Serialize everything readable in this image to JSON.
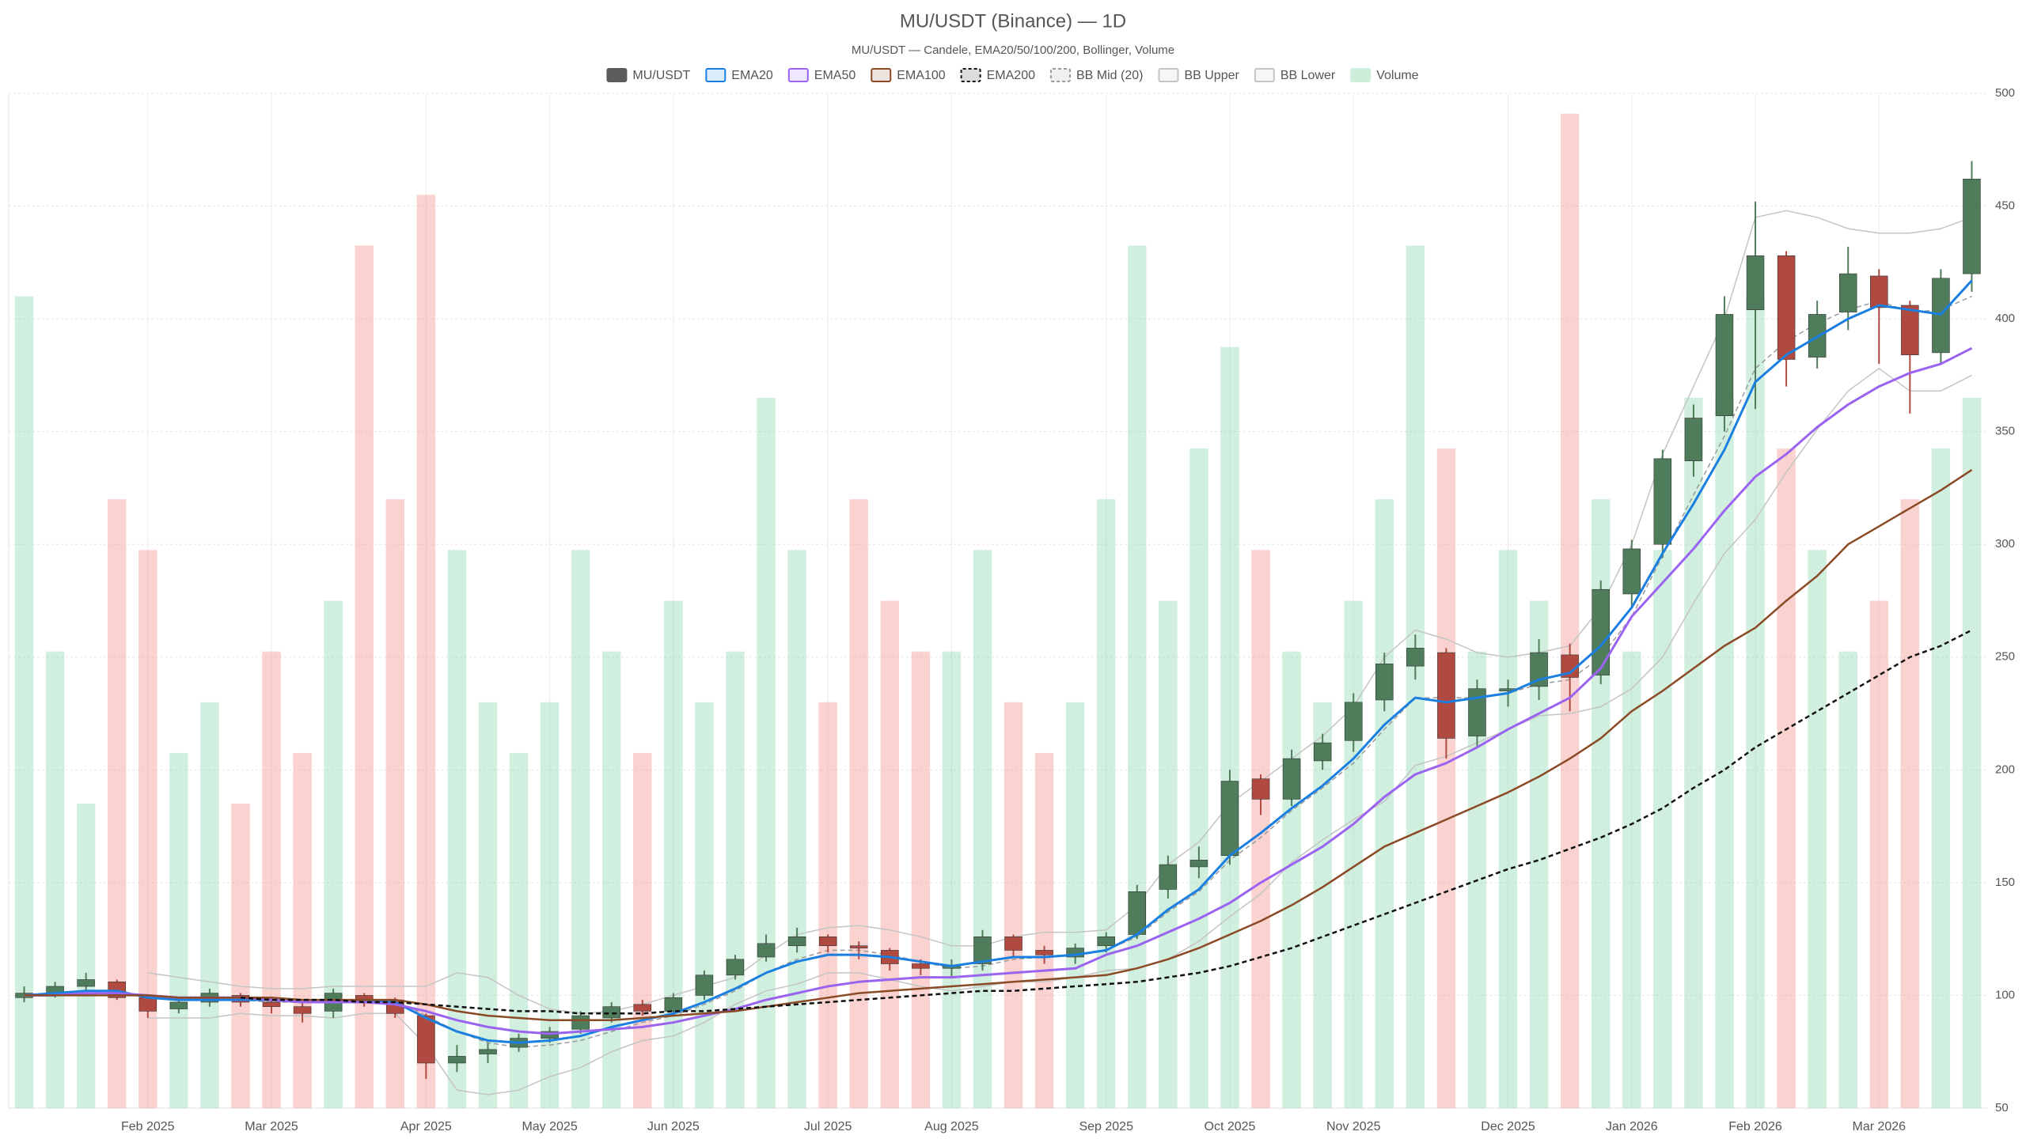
{
  "chart_data": {
    "type": "candlestick",
    "title": "MU/USDT (Binance) — 1D",
    "subtitle": "MU/USDT — Candele, EMA20/50/100/200, Bollinger, Volume",
    "categories": [
      null,
      null,
      null,
      null,
      "Feb 2025",
      null,
      null,
      null,
      "Mar 2025",
      null,
      null,
      null,
      null,
      "Apr 2025",
      null,
      null,
      null,
      "May 2025",
      null,
      null,
      null,
      "Jun 2025",
      null,
      null,
      null,
      null,
      "Jul 2025",
      null,
      null,
      null,
      "Aug 2025",
      null,
      null,
      null,
      null,
      "Sep 2025",
      null,
      null,
      null,
      "Oct 2025",
      null,
      null,
      null,
      "Nov 2025",
      null,
      null,
      null,
      null,
      "Dec 2025",
      null,
      null,
      null,
      "Jan 2026",
      null,
      null,
      null,
      "Feb 2026",
      null,
      null,
      null,
      "Mar 2026",
      null,
      null,
      null
    ],
    "ylim": [
      50,
      500
    ],
    "yticks": [
      50,
      100,
      150,
      200,
      250,
      300,
      350,
      400,
      450,
      500
    ],
    "vlim": [
      0,
      100
    ],
    "grid": true,
    "legend": "top",
    "series": [
      {
        "name": "MU/USDT",
        "type": "candlestick",
        "color": "#5c5c5c",
        "up_color": "#4f7d5c",
        "down_color": "#b04a40",
        "open": [
          99,
          101,
          104,
          106,
          99,
          94,
          97,
          100,
          97,
          95,
          93,
          100,
          98,
          91,
          70,
          74,
          77,
          81,
          85,
          90,
          96,
          93,
          100,
          109,
          117,
          122,
          126,
          122,
          120,
          114,
          112,
          114,
          126,
          120,
          117,
          122,
          127,
          147,
          157,
          162,
          196,
          187,
          204,
          213,
          231,
          246,
          252,
          215,
          235,
          237,
          251,
          242,
          278,
          300,
          337,
          357,
          404,
          428,
          383,
          403,
          419,
          406,
          385,
          420
        ],
        "high": [
          104,
          106,
          110,
          107,
          100,
          98,
          103,
          101,
          99,
          97,
          103,
          101,
          99,
          92,
          78,
          79,
          83,
          86,
          93,
          97,
          98,
          101,
          111,
          118,
          127,
          130,
          127,
          124,
          121,
          116,
          116,
          129,
          127,
          122,
          123,
          128,
          149,
          162,
          166,
          200,
          198,
          209,
          216,
          234,
          252,
          260,
          254,
          240,
          240,
          258,
          256,
          284,
          302,
          342,
          362,
          410,
          452,
          430,
          408,
          432,
          422,
          408,
          422,
          470
        ],
        "low": [
          97,
          99,
          102,
          98,
          90,
          92,
          95,
          95,
          92,
          88,
          90,
          95,
          90,
          63,
          66,
          70,
          75,
          79,
          83,
          88,
          91,
          91,
          98,
          107,
          115,
          119,
          119,
          116,
          111,
          109,
          108,
          111,
          117,
          114,
          114,
          119,
          125,
          143,
          152,
          158,
          180,
          184,
          200,
          208,
          226,
          240,
          205,
          210,
          228,
          231,
          226,
          238,
          272,
          294,
          330,
          350,
          360,
          370,
          378,
          395,
          380,
          358,
          380,
          412
        ],
        "close": [
          101,
          104,
          107,
          99,
          93,
          97,
          101,
          97,
          95,
          92,
          101,
          97,
          92,
          70,
          73,
          76,
          81,
          84,
          91,
          95,
          93,
          99,
          109,
          116,
          123,
          126,
          122,
          121,
          114,
          112,
          113,
          126,
          120,
          118,
          121,
          126,
          146,
          158,
          160,
          195,
          187,
          205,
          212,
          230,
          247,
          254,
          214,
          236,
          236,
          252,
          241,
          280,
          298,
          338,
          356,
          402,
          428,
          382,
          402,
          420,
          405,
          384,
          418,
          462
        ]
      },
      {
        "name": "EMA20",
        "type": "line",
        "color": "#1a7fe0",
        "width": 3,
        "values": [
          100,
          101,
          102,
          102,
          99,
          98,
          98,
          98,
          98,
          97,
          97,
          98,
          97,
          90,
          84,
          80,
          79,
          80,
          82,
          86,
          89,
          92,
          97,
          103,
          110,
          115,
          118,
          118,
          117,
          115,
          113,
          115,
          117,
          117,
          118,
          120,
          127,
          138,
          147,
          162,
          172,
          183,
          193,
          205,
          220,
          232,
          230,
          232,
          234,
          240,
          243,
          255,
          272,
          296,
          318,
          342,
          372,
          384,
          392,
          400,
          406,
          404,
          402,
          417
        ]
      },
      {
        "name": "EMA50",
        "type": "line",
        "color": "#9a63f0",
        "width": 3,
        "values": [
          100,
          100,
          101,
          101,
          100,
          99,
          99,
          99,
          98,
          97,
          97,
          97,
          96,
          93,
          89,
          86,
          84,
          83,
          84,
          85,
          86,
          88,
          91,
          94,
          98,
          101,
          104,
          106,
          107,
          108,
          108,
          109,
          110,
          111,
          112,
          118,
          122,
          128,
          134,
          141,
          150,
          158,
          166,
          176,
          188,
          198,
          203,
          210,
          218,
          225,
          232,
          245,
          268,
          283,
          298,
          315,
          330,
          340,
          352,
          362,
          370,
          376,
          380,
          387
        ]
      },
      {
        "name": "EMA100",
        "type": "line",
        "color": "#8b4a26",
        "width": 2.5,
        "values": [
          100,
          100,
          100,
          100,
          100,
          99,
          99,
          99,
          99,
          98,
          98,
          98,
          98,
          96,
          93,
          91,
          90,
          89,
          89,
          89,
          90,
          91,
          92,
          93,
          95,
          97,
          99,
          101,
          102,
          103,
          104,
          105,
          106,
          107,
          108,
          109,
          112,
          116,
          121,
          127,
          133,
          140,
          148,
          157,
          166,
          172,
          178,
          184,
          190,
          197,
          205,
          214,
          226,
          235,
          245,
          255,
          263,
          275,
          286,
          300,
          308,
          316,
          324,
          333
        ]
      },
      {
        "name": "EMA200",
        "type": "line",
        "color": "#111111",
        "width": 2.5,
        "dash": true,
        "values": [
          null,
          null,
          null,
          null,
          null,
          null,
          null,
          99,
          98,
          98,
          98,
          97,
          97,
          96,
          95,
          94,
          93,
          93,
          92,
          92,
          92,
          93,
          93,
          94,
          95,
          96,
          97,
          98,
          99,
          100,
          101,
          102,
          102,
          103,
          104,
          105,
          106,
          108,
          110,
          113,
          117,
          121,
          126,
          131,
          136,
          141,
          146,
          151,
          156,
          160,
          165,
          170,
          176,
          183,
          192,
          200,
          210,
          218,
          226,
          234,
          242,
          250,
          255,
          262
        ]
      },
      {
        "name": "BB Mid (20)",
        "type": "line",
        "color": "#9a9a9a",
        "width": 1.5,
        "dash": true,
        "values": [
          null,
          null,
          null,
          null,
          100,
          99,
          98,
          98,
          97,
          97,
          97,
          98,
          98,
          91,
          84,
          79,
          77,
          78,
          80,
          84,
          88,
          91,
          96,
          102,
          110,
          116,
          120,
          120,
          118,
          115,
          112,
          113,
          116,
          117,
          118,
          120,
          126,
          137,
          146,
          160,
          170,
          182,
          192,
          203,
          218,
          232,
          232,
          232,
          234,
          238,
          240,
          250,
          268,
          295,
          322,
          348,
          378,
          390,
          398,
          404,
          408,
          403,
          404,
          410
        ]
      },
      {
        "name": "BB Upper",
        "type": "line",
        "color": "#c4c4c4",
        "width": 1.5,
        "values": [
          null,
          null,
          null,
          null,
          110,
          108,
          106,
          104,
          103,
          103,
          104,
          104,
          104,
          104,
          110,
          108,
          100,
          94,
          92,
          93,
          96,
          100,
          104,
          108,
          118,
          127,
          130,
          131,
          129,
          126,
          122,
          122,
          126,
          128,
          128,
          129,
          140,
          158,
          168,
          185,
          195,
          205,
          215,
          228,
          250,
          262,
          258,
          252,
          250,
          252,
          255,
          272,
          300,
          340,
          370,
          400,
          445,
          448,
          445,
          440,
          438,
          438,
          440,
          445
        ]
      },
      {
        "name": "BB Lower",
        "type": "line",
        "color": "#c4c4c4",
        "width": 1.5,
        "values": [
          null,
          null,
          null,
          null,
          90,
          90,
          90,
          92,
          91,
          91,
          90,
          92,
          92,
          78,
          58,
          56,
          58,
          64,
          68,
          75,
          80,
          82,
          88,
          96,
          102,
          105,
          110,
          110,
          107,
          104,
          102,
          104,
          106,
          106,
          108,
          111,
          112,
          116,
          124,
          135,
          145,
          159,
          169,
          178,
          186,
          202,
          206,
          212,
          218,
          224,
          225,
          228,
          236,
          250,
          274,
          296,
          311,
          332,
          351,
          368,
          378,
          368,
          368,
          375
        ]
      },
      {
        "name": "Volume",
        "type": "volume",
        "color": "#cdeedb",
        "up_color": "rgba(120,210,160,0.35)",
        "down_color": "rgba(240,130,120,0.35)",
        "values": [
          80,
          45,
          30,
          60,
          55,
          35,
          40,
          30,
          45,
          35,
          50,
          85,
          60,
          90,
          55,
          40,
          35,
          40,
          55,
          45,
          35,
          50,
          40,
          45,
          70,
          55,
          40,
          60,
          50,
          45,
          45,
          55,
          40,
          35,
          40,
          60,
          85,
          50,
          65,
          75,
          55,
          45,
          40,
          50,
          60,
          85,
          65,
          45,
          55,
          50,
          98,
          60,
          45,
          55,
          70,
          70,
          80,
          65,
          55,
          45,
          50,
          60,
          65,
          70
        ]
      }
    ]
  }
}
